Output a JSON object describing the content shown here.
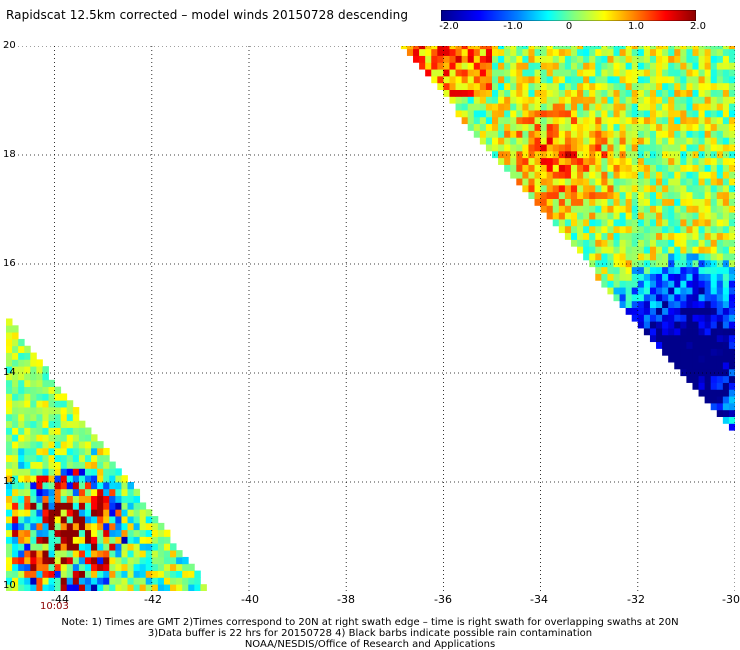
{
  "title": "Rapidscat 12.5km corrected – model winds 20150728 descending",
  "colorbar": {
    "labels": [
      "-2.0",
      "-1.0",
      "0",
      "1.0",
      "2.0"
    ],
    "colors": [
      "#00008b",
      "#0000ff",
      "#0080ff",
      "#00ffff",
      "#80ff80",
      "#ffff00",
      "#ff8000",
      "#ff0000",
      "#8b0000"
    ]
  },
  "chart_data": {
    "type": "heatmap",
    "title": "Rapidscat 12.5km corrected – model winds 20150728 descending",
    "xlim": [
      -45,
      -30
    ],
    "ylim": [
      10,
      20
    ],
    "colorscale_range": [
      -2.0,
      2.0
    ],
    "x_ticks": [
      "-44",
      "-42",
      "-40",
      "-38",
      "-36",
      "-34",
      "-32",
      "-30"
    ],
    "y_ticks": [
      "20",
      "18",
      "16",
      "14",
      "12",
      "10"
    ],
    "grid": true,
    "swaths": [
      {
        "region": "upper-right",
        "lon_range": [
          -37.0,
          -30.0
        ],
        "lat_range": [
          13.0,
          20.0
        ],
        "dominant": "mixed positive, strong negative near -31,14"
      },
      {
        "region": "lower-left",
        "lon_range": [
          -45.0,
          -40.9
        ],
        "lat_range": [
          10.0,
          14.9
        ],
        "dominant": "mixed, strong positive near -44,11"
      }
    ],
    "time_labels": [
      {
        "lon": -44,
        "text": "10:03"
      }
    ]
  },
  "notes": {
    "line1": "Note: 1) Times are GMT 2)Times correspond to 20N at right swath edge – time is right swath for overlapping swaths at 20N",
    "line2": "3)Data buffer is 22 hrs for 20150728 4) Black barbs indicate possible rain contamination",
    "line3": "NOAA/NESDIS/Office of Research and Applications"
  }
}
